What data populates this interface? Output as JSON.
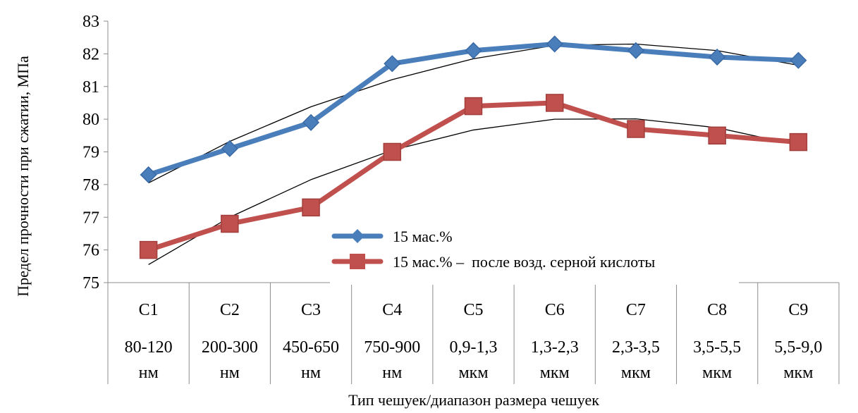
{
  "chart_data": {
    "type": "line",
    "xlabel": "Тип чешуек/диапазон размера чешуек",
    "ylabel": "Предел прочности при сжатии, МПа",
    "ylim": [
      75,
      83
    ],
    "yticks": [
      "75",
      "76",
      "77",
      "78",
      "79",
      "80",
      "81",
      "82",
      "83"
    ],
    "categories": [
      {
        "code": "C1",
        "range": "80-120",
        "unit": "нм"
      },
      {
        "code": "C2",
        "range": "200-300",
        "unit": "нм"
      },
      {
        "code": "C3",
        "range": "450-650",
        "unit": "нм"
      },
      {
        "code": "C4",
        "range": "750-900",
        "unit": "нм"
      },
      {
        "code": "C5",
        "range": "0,9-1,3",
        "unit": "мкм"
      },
      {
        "code": "C6",
        "range": "1,3-2,3",
        "unit": "мкм"
      },
      {
        "code": "C7",
        "range": "2,3-3,5",
        "unit": "мкм"
      },
      {
        "code": "C8",
        "range": "3,5-5,5",
        "unit": "мкм"
      },
      {
        "code": "C9",
        "range": "5,5-9,0",
        "unit": "мкм"
      }
    ],
    "series": [
      {
        "name": "15 мас.%",
        "color": "#4a7ebb",
        "marker": "diamond",
        "values": [
          78.3,
          79.1,
          79.9,
          81.7,
          82.1,
          82.3,
          82.1,
          81.9,
          81.8
        ],
        "trend": [
          78.05,
          79.32,
          80.38,
          81.21,
          81.85,
          82.26,
          82.3,
          82.1,
          81.65
        ]
      },
      {
        "name": "15 мас.% –  после возд. серной кислоты",
        "color": "#c0504d",
        "marker": "square",
        "values": [
          76.0,
          76.8,
          77.3,
          79.0,
          80.4,
          80.5,
          79.7,
          79.5,
          79.3
        ],
        "trend": [
          75.55,
          77.0,
          78.15,
          79.05,
          79.67,
          80.0,
          80.01,
          79.74,
          79.2
        ]
      }
    ],
    "grid": false,
    "legend_position": "bottom-center"
  }
}
